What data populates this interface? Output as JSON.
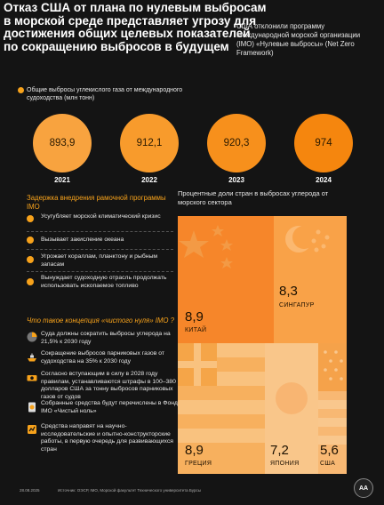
{
  "title_lines": [
    "Отказ США от плана  по нулевым выбросам",
    " в морской среде представляет угрозу для",
    " достижения общих целевых показателей",
    "по сокращению выбросов в будущем"
  ],
  "note": "США отклонили программу Международной морской организации (IMO) «Нулевые выбросы» (Net Zero Framework)",
  "emissions_label": "Общие выбросы углекислого газа от международного судоходства (млн тонн)",
  "emissions": [
    {
      "year": "2021",
      "value": "893,9",
      "color": "#f8a33f"
    },
    {
      "year": "2022",
      "value": "912,1",
      "color": "#f89b2c"
    },
    {
      "year": "2023",
      "value": "920,3",
      "color": "#f7901c"
    },
    {
      "year": "2024",
      "value": "974",
      "color": "#f5860e"
    }
  ],
  "delay_title": "Задержка внедрения рамочной программы IMO",
  "delay_reasons": [
    "Усугубляет морской климатический кризис",
    "Вызывает закисление океана",
    "Угрожает кораллам, планктону и рыбным запасам",
    "Вынуждает судоходную отрасль продолжать использовать ископаемое топливо"
  ],
  "netzero_title": "Что такое концепция «чистого нуля» IMO ?",
  "netzero_points": [
    {
      "icon": "pie-chart-icon",
      "text": "Суда должны сократить выбросы углерода на 21,5% к 2030 году"
    },
    {
      "icon": "ship-icon",
      "text": "Сокращение выбросов парниковых газов от судоходства на 35% к 2030 году"
    },
    {
      "icon": "money-icon",
      "text": "Согласно вступающим в силу в 2028 году правилам, устанавливаются штрафы в 100–380 долларов США за тонну выбросов парниковых газов от судов"
    },
    {
      "icon": "coins-icon",
      "text": "Собранные средства будут перечислены в Фонд IMO «Чистый ноль»"
    },
    {
      "icon": "research-icon",
      "text": "Средства направят на научно-исследовательские и опытно-конструкторские работы, в первую очередь для развивающихся стран"
    }
  ],
  "shares_title": "Процентные доли стран в выбросах углерода от морского сектора",
  "shares": [
    {
      "country": "КИТАЙ",
      "value": "8,9"
    },
    {
      "country": "СИНГАПУР",
      "value": "8,3"
    },
    {
      "country": "ГРЕЦИЯ",
      "value": "8,9"
    },
    {
      "country": "ЯПОНИЯ",
      "value": "7,2"
    },
    {
      "country": "США",
      "value": "5,6"
    }
  ],
  "footer_date": "28.08.2025",
  "footer_source": "Источник: ОЭСР, IMO, Морской факультет Технического университета Бурсы",
  "logo_text": "AA",
  "colors": {
    "accent": "#f7a21b",
    "background": "#141414"
  }
}
